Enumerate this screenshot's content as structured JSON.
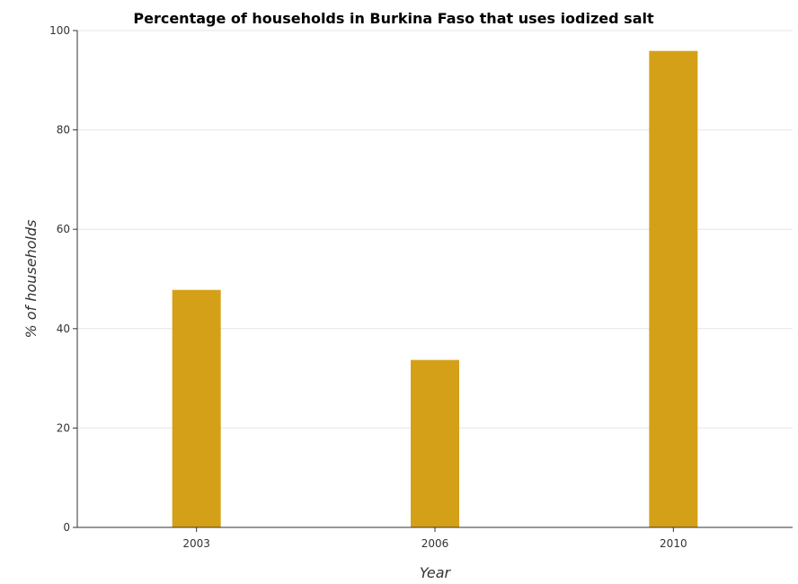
{
  "chart_data": {
    "type": "bar",
    "title": "Percentage of households in Burkina Faso that uses iodized salt",
    "xlabel": "Year",
    "ylabel": "% of households",
    "categories": [
      "2003",
      "2006",
      "2010"
    ],
    "values": [
      47.8,
      33.7,
      95.9
    ],
    "ylim": [
      0,
      100
    ],
    "yticks": [
      "0",
      "20",
      "40",
      "60",
      "80",
      "100"
    ],
    "grid": true,
    "legend": "none",
    "bar_color": "#d4a017"
  }
}
